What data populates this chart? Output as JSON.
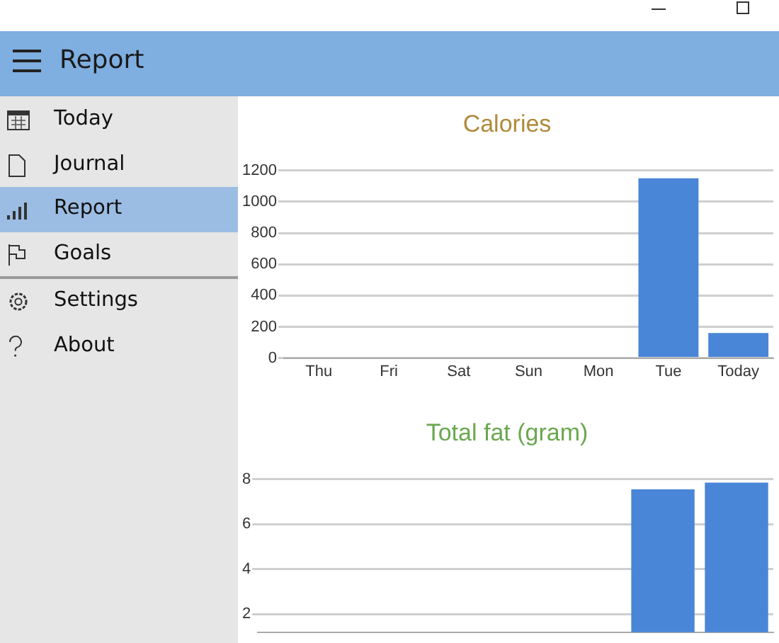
{
  "chart_data": [
    {
      "type": "bar",
      "title": "Calories",
      "categories": [
        "Thu",
        "Fri",
        "Sat",
        "Sun",
        "Mon",
        "Tue",
        "Today"
      ],
      "values": [
        0,
        0,
        0,
        0,
        0,
        1150,
        160
      ],
      "color": "#4a86d8",
      "ylim": [
        0,
        1200
      ],
      "yticks": [
        0,
        200,
        400,
        600,
        800,
        1000,
        1200
      ],
      "grid": "y"
    },
    {
      "type": "bar",
      "title": "Total fat (gram)",
      "categories": [
        null,
        null,
        null,
        null,
        null,
        null,
        null
      ],
      "values": [
        null,
        null,
        null,
        null,
        null,
        7.55,
        7.85
      ],
      "color": "#4a86d8",
      "ylim": [
        1.2,
        8
      ],
      "yticks": [
        2,
        4,
        6,
        8
      ],
      "grid": "y",
      "tick_labels": "y"
    },
    {
      "type": "other",
      "title": "Report",
      "annotations": [
        "Today",
        "Journal",
        "Report",
        "Goals",
        "Settings",
        "About"
      ]
    }
  ]
}
